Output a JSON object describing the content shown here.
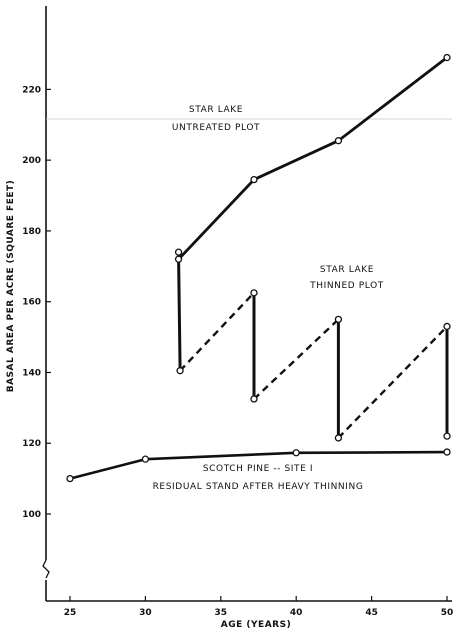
{
  "chart_data": {
    "type": "line",
    "xlabel": "AGE (YEARS)",
    "ylabel": "BASAL AREA PER ACRE (SQUARE FEET)",
    "xlim": [
      25,
      50
    ],
    "ylim": [
      100,
      230
    ],
    "x_ticks": [
      "25",
      "30",
      "35",
      "40",
      "45",
      "50"
    ],
    "y_ticks": [
      "100",
      "120",
      "140",
      "160",
      "180",
      "200",
      "220"
    ],
    "axis_break": "y-axis below 100",
    "grid": false,
    "annotations": [
      {
        "id": "untreated",
        "lines": [
          "STAR LAKE",
          "UNTREATED PLOT"
        ]
      },
      {
        "id": "thinned",
        "lines": [
          "STAR LAKE",
          "THINNED PLOT"
        ]
      },
      {
        "id": "scotch",
        "lines": [
          "SCOTCH PINE -- SITE I",
          "RESIDUAL STAND AFTER HEAVY THINNING"
        ]
      }
    ],
    "series": [
      {
        "id": "untreated",
        "style": "solid",
        "x": [
          32.2,
          32.2,
          37.2,
          42.8,
          50
        ],
        "y": [
          174,
          172,
          194.5,
          205.5,
          229
        ]
      },
      {
        "id": "thinned",
        "segments": [
          {
            "style": "solid",
            "x": [
              32.2,
              32.3
            ],
            "y": [
              172,
              140.5
            ]
          },
          {
            "style": "dashed",
            "x": [
              32.3,
              37.2
            ],
            "y": [
              140.5,
              162.5
            ]
          },
          {
            "style": "solid",
            "x": [
              37.2,
              37.2
            ],
            "y": [
              162.5,
              132.5
            ]
          },
          {
            "style": "dashed",
            "x": [
              37.2,
              42.8
            ],
            "y": [
              132.5,
              155
            ]
          },
          {
            "style": "solid",
            "x": [
              42.8,
              42.8
            ],
            "y": [
              155,
              121.5
            ]
          },
          {
            "style": "dashed",
            "x": [
              42.8,
              50
            ],
            "y": [
              121.5,
              153
            ]
          },
          {
            "style": "solid",
            "x": [
              50,
              50
            ],
            "y": [
              153,
              122
            ]
          }
        ],
        "points": [
          [
            32.3,
            140.5
          ],
          [
            37.2,
            162.5
          ],
          [
            37.2,
            132.5
          ],
          [
            42.8,
            155
          ],
          [
            42.8,
            121.5
          ],
          [
            50,
            153
          ],
          [
            50,
            122
          ]
        ]
      },
      {
        "id": "scotch",
        "style": "solid",
        "x": [
          25,
          30,
          40,
          50
        ],
        "y": [
          110,
          115.5,
          117.3,
          117.5
        ]
      }
    ]
  }
}
